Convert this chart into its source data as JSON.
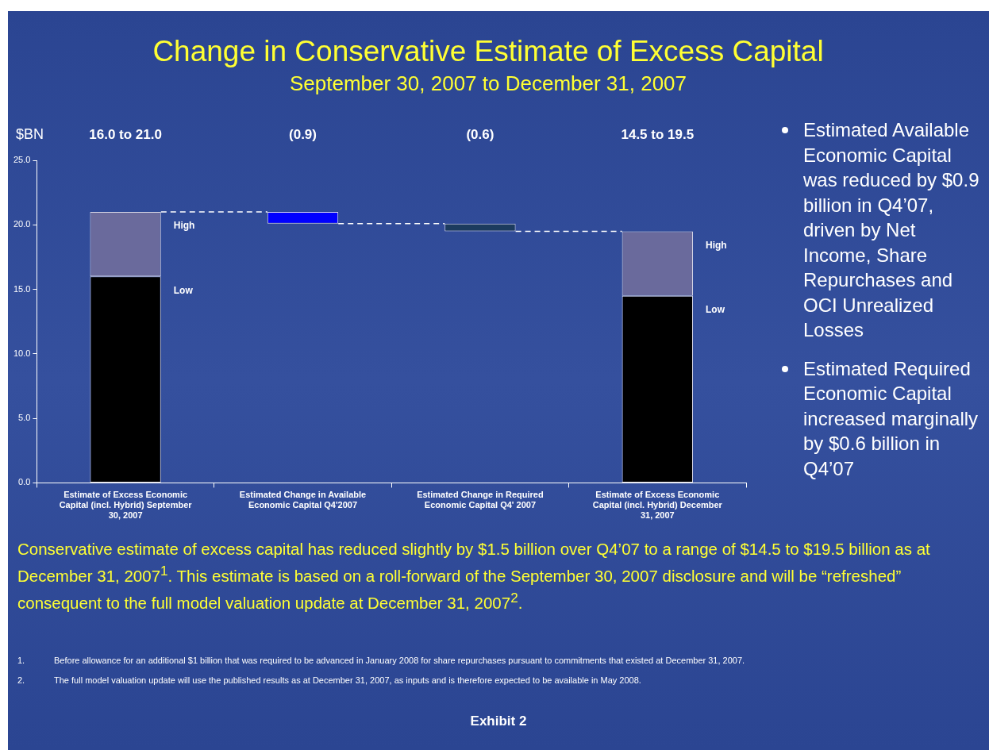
{
  "chart_data": {
    "type": "bar",
    "title": "Change in Conservative Estimate of Excess Capital",
    "subtitle": "September 30, 2007 to December 31, 2007",
    "ylabel": "$BN",
    "categories": [
      "Estimate of Excess Economic Capital (incl. Hybrid) September 30, 2007",
      "Estimated Change in Available Economic Capital Q4'2007",
      "Estimated Change in Required Economic Capital Q4' 2007",
      "Estimate of Excess Economic Capital (incl. Hybrid) December 31, 2007"
    ],
    "stacked": true,
    "series": [
      {
        "name": "Low",
        "color": "#000000",
        "values": [
          16.0,
          null,
          null,
          14.5
        ]
      },
      {
        "name": "High",
        "color": "#6a6a9c",
        "values": [
          5.0,
          null,
          null,
          5.0
        ]
      },
      {
        "colors": [
          null,
          "#0000ff",
          "#1c3b5e",
          null
        ],
        "values": [
          null,
          -0.9,
          -0.6,
          null
        ],
        "base": [
          null,
          21.0,
          20.1,
          null
        ]
      }
    ],
    "ylim": [
      0,
      25
    ],
    "yticks": [
      {
        "value": 0,
        "label": "0.0"
      },
      {
        "value": 5,
        "label": "5.0"
      },
      {
        "value": 10,
        "label": "10.0"
      },
      {
        "value": 15,
        "label": "15.0"
      },
      {
        "value": 20,
        "label": "20.0"
      },
      {
        "value": 25,
        "label": "25.0"
      }
    ],
    "grid": false,
    "legend": false,
    "annotations": [
      "Estimated Available Economic Capital was reduced by $0.9 billion in Q4’07, driven by Net Income, Share Repurchases and OCI Unrealized Losses",
      "Estimated Required Economic Capital increased marginally by $0.6 billion in Q4’07",
      "Conservative estimate of excess capital has reduced slightly by $1.5 billion over Q4’07 to a range of $14.5 to $19.5 billion as at December 31, 2007$^{1}$. This estimate is based on a roll-forward of the September 30, 2007 disclosure and will be “refreshed” consequent to the full model valuation update at December 31, 2007$^{2}$.",
      "1.\tBefore allowance for an additional $1 billion that was required to be advanced in January 2008 for share repurchases pursuant to commitments that existed at December 31, 2007.",
      "2.\tThe full model valuation update will use the published results as at December 31, 2007, as inputs and is therefore expected to be available in May 2008.",
      "Exhibit 2",
      "16.0 to 21.0",
      "(0.9)",
      "(0.6)",
      "14.5 to 19.5"
    ]
  }
}
